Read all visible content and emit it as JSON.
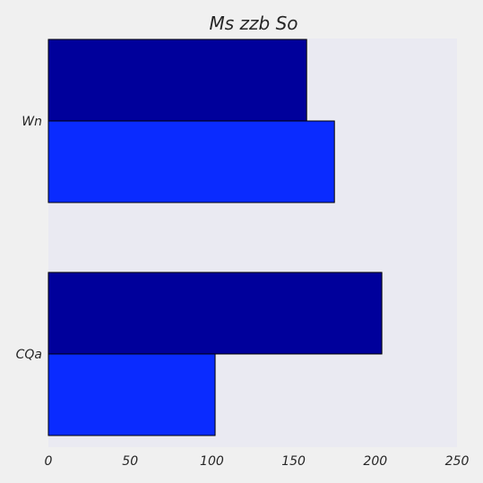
{
  "chart_data": {
    "type": "bar",
    "orientation": "horizontal",
    "title": "Ms zzb  So",
    "categories": [
      "Wn",
      "CQa"
    ],
    "series": [
      {
        "color": "#00009b",
        "values": [
          158,
          204
        ]
      },
      {
        "color": "#0a2bff",
        "values": [
          175,
          102
        ]
      }
    ],
    "x_ticks": [
      "0",
      "50",
      "100",
      "150",
      "200",
      "250"
    ],
    "xlim": [
      0,
      250
    ],
    "xlabel": "",
    "ylabel": "",
    "grid": false,
    "legend": "none",
    "colors": {
      "plot_background": "#eaeaf2",
      "figure_background": "#f0f0f0",
      "bar_edge": "#000000"
    }
  }
}
